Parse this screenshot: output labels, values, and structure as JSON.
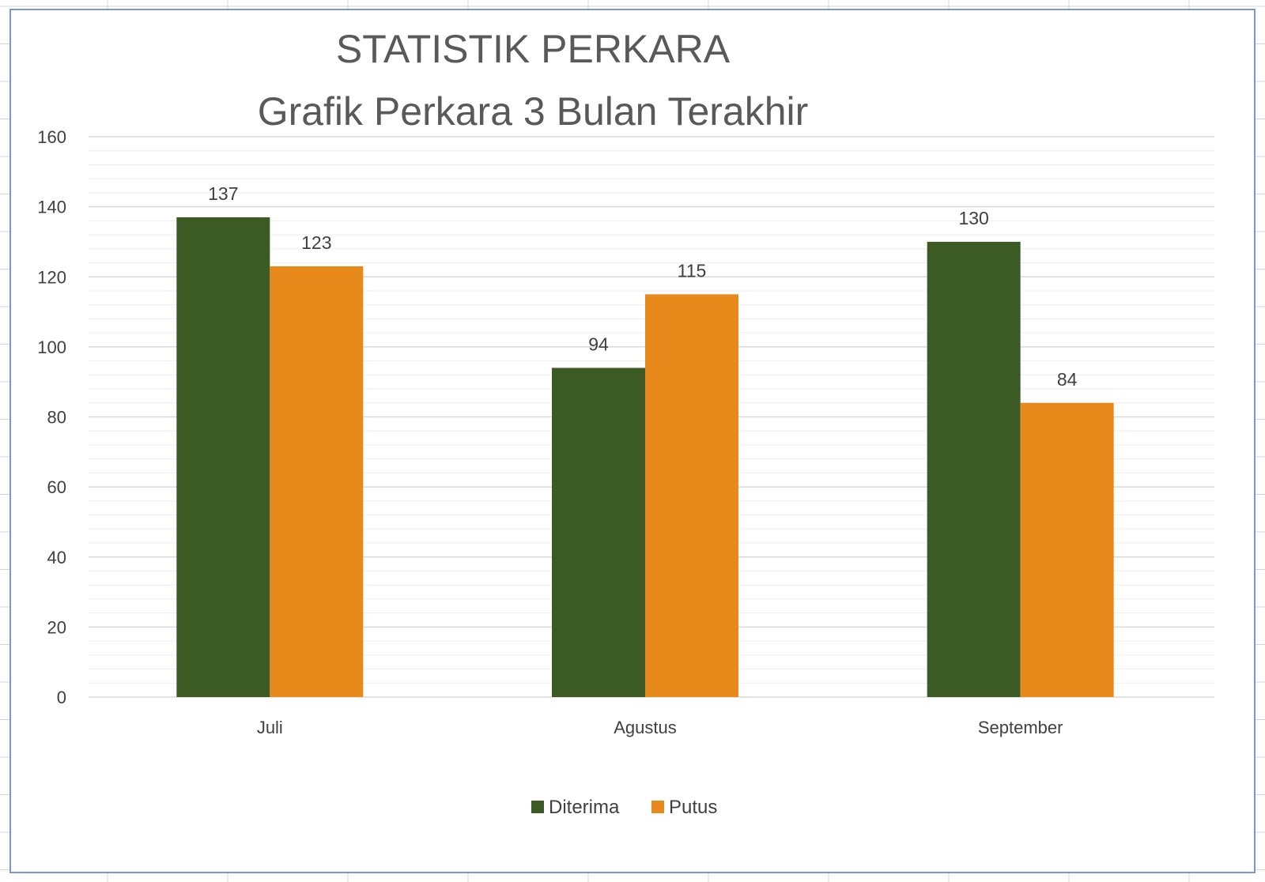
{
  "chart_data": {
    "type": "bar",
    "title": "STATISTIK PERKARA",
    "subtitle": "Grafik Perkara 3 Bulan Terakhir",
    "categories": [
      "Juli",
      "Agustus",
      "September"
    ],
    "series": [
      {
        "name": "Diterima",
        "values": [
          137,
          94,
          130
        ],
        "color": "#3c5a24"
      },
      {
        "name": "Putus",
        "values": [
          123,
          115,
          84
        ],
        "color": "#e8891c"
      }
    ],
    "ylim": [
      0,
      160
    ],
    "yticks": [
      "0",
      "20",
      "40",
      "60",
      "80",
      "100",
      "120",
      "140",
      "160"
    ],
    "xlabel": "",
    "ylabel": "",
    "grid": true,
    "minor_grid": true,
    "data_labels": true,
    "legend_position": "bottom"
  },
  "colors": {
    "frame_border": "#7f95cf",
    "sheet_grid": "#d4d4d4",
    "major_grid": "#d9d9d9",
    "minor_grid": "#eeeeee"
  }
}
